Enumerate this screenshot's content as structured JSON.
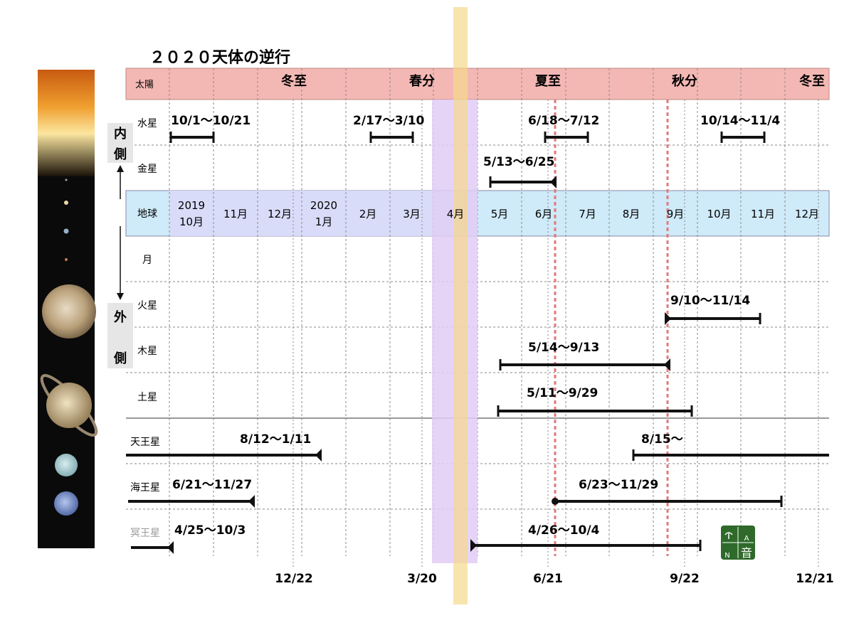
{
  "title": "２０２０天体の逆行",
  "side_labels": {
    "inner": [
      "内",
      "側"
    ],
    "outer": [
      "外",
      "側"
    ]
  },
  "sun_row": {
    "label": "太陽",
    "markers": [
      "冬至",
      "春分",
      "夏至",
      "秋分",
      "冬至"
    ]
  },
  "earth_row": {
    "label": "地球",
    "months": [
      [
        "2019",
        "10月"
      ],
      [
        "11月"
      ],
      [
        "12月"
      ],
      [
        "2020",
        "1月"
      ],
      [
        "2月"
      ],
      [
        "3月"
      ],
      [
        "4月"
      ],
      [
        "5月"
      ],
      [
        "6月"
      ],
      [
        "7月"
      ],
      [
        "8月"
      ],
      [
        "9月"
      ],
      [
        "10月"
      ],
      [
        "11月"
      ],
      [
        "12月"
      ]
    ]
  },
  "bottom_dates": [
    "12/22",
    "3/20",
    "6/21",
    "9/22",
    "12/21"
  ],
  "rows": [
    {
      "label": "水星",
      "periods": [
        "10/1〜10/21",
        "2/17〜3/10",
        "6/18〜7/12",
        "10/14〜11/4"
      ]
    },
    {
      "label": "金星",
      "periods": [
        "5/13〜6/25"
      ]
    },
    {
      "label": "月",
      "periods": []
    },
    {
      "label": "火星",
      "periods": [
        "9/10〜11/14"
      ]
    },
    {
      "label": "木星",
      "periods": [
        "5/14〜9/13"
      ]
    },
    {
      "label": "土星",
      "periods": [
        "5/11〜9/29"
      ]
    },
    {
      "label": "天王星",
      "periods": [
        "8/12〜1/11",
        "8/15〜"
      ]
    },
    {
      "label": "海王星",
      "periods": [
        "6/21〜11/27",
        "6/23〜11/29"
      ]
    },
    {
      "label": "冥王星",
      "periods": [
        "4/25〜10/3",
        "4/26〜10/4"
      ]
    }
  ],
  "logo": {
    "letters": [
      "A",
      "N",
      "音"
    ]
  },
  "colors": {
    "sun_row": "#f4b8b4",
    "earth_row": "#cfeaf8",
    "earth_past": "#d8dcf8",
    "spring_band": "#e2ccf6",
    "highlight": "#f5d98a",
    "solstice_line": "#e07a7a",
    "bar": "#111111",
    "logo": "#2f6a2a"
  }
}
